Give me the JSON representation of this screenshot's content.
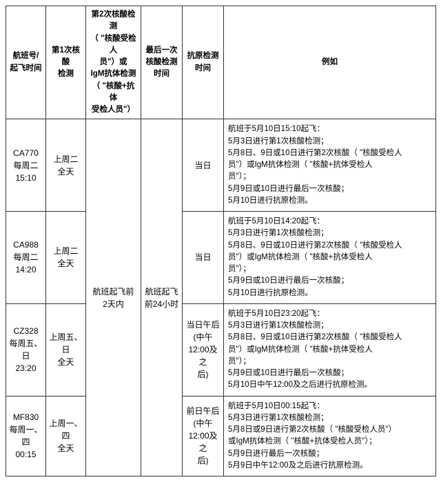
{
  "headers": {
    "h1": "航班号/\n起飞时间",
    "h2": "第1次核酸\n检测",
    "h3": "第2次核酸检测\n（ \"核酸受检人\n员\"）或\nIgM抗体检测\n（ \"核酸+抗体\n受检人员\"）",
    "h4": "最后一次\n核酸检测\n时间",
    "h5": "抗原检测\n时间",
    "h6": "例如"
  },
  "merged": {
    "col3": "航班起飞前\n2天内",
    "col4": "航班起飞\n前24小时"
  },
  "rows": [
    {
      "flight": "CA770\n每周二\n15:10",
      "test1": "上周二\n全天",
      "antigen": "当日",
      "example": "航班于5月10日15:10起飞：\n5月3日进行第1次核酸检测；\n5月8日、9日或10日进行第2次核酸（ \"核酸受检人\n员\"）或IgM抗体检测（ \"核酸+抗体受检人\n员\"）；\n5月9日或10日进行最后一次核酸；\n5月10日进行抗原检测。"
    },
    {
      "flight": "CA988\n每周二\n14:20",
      "test1": "上周二\n全天",
      "antigen": "当日",
      "example": "航班于5月10日14:20起飞：\n5月3日进行第1次核酸检测；\n5月8日、9日或10日进行第2次核酸（ \"核酸受检人\n员\"）或IgM抗体检测（ \"核酸+抗体受检人\n员\"）；\n5月9日或10日进行最后一次核酸；\n5月10日进行抗原检测。"
    },
    {
      "flight": "CZ328\n每周五、日\n23:20",
      "test1": "上周五、日\n全天",
      "antigen": "当日午后\n(中午\n12:00及之\n后)",
      "example": "航班于5月10日23:20起飞：\n5月3日进行第1次核酸检测；\n5月8日、9日或10日进行第2次核酸（ \"核酸受检人\n员\"）或IgM抗体检测（ \"核酸+抗体受检人\n员\"）；\n5月9日或10日进行最后一次核酸；\n5月10日中午12:00及之后进行抗原检测。"
    },
    {
      "flight": "MF830\n每周一、四\n00:15",
      "test1": "上周一、四\n全天",
      "antigen": "前日午后\n(中午\n12:00及之\n后)",
      "example": "航班于5月10日00:15起飞：\n5月3日进行第1次核酸检测；\n5月8日或9日进行第2次核酸（ \"核酸受检人员\"）\n或IgM抗体检测（ \"核酸+抗体受检人员\"）；\n5月9日进行最后一次核酸；\n5月9日中午12:00及之后进行抗原检测。"
    }
  ]
}
